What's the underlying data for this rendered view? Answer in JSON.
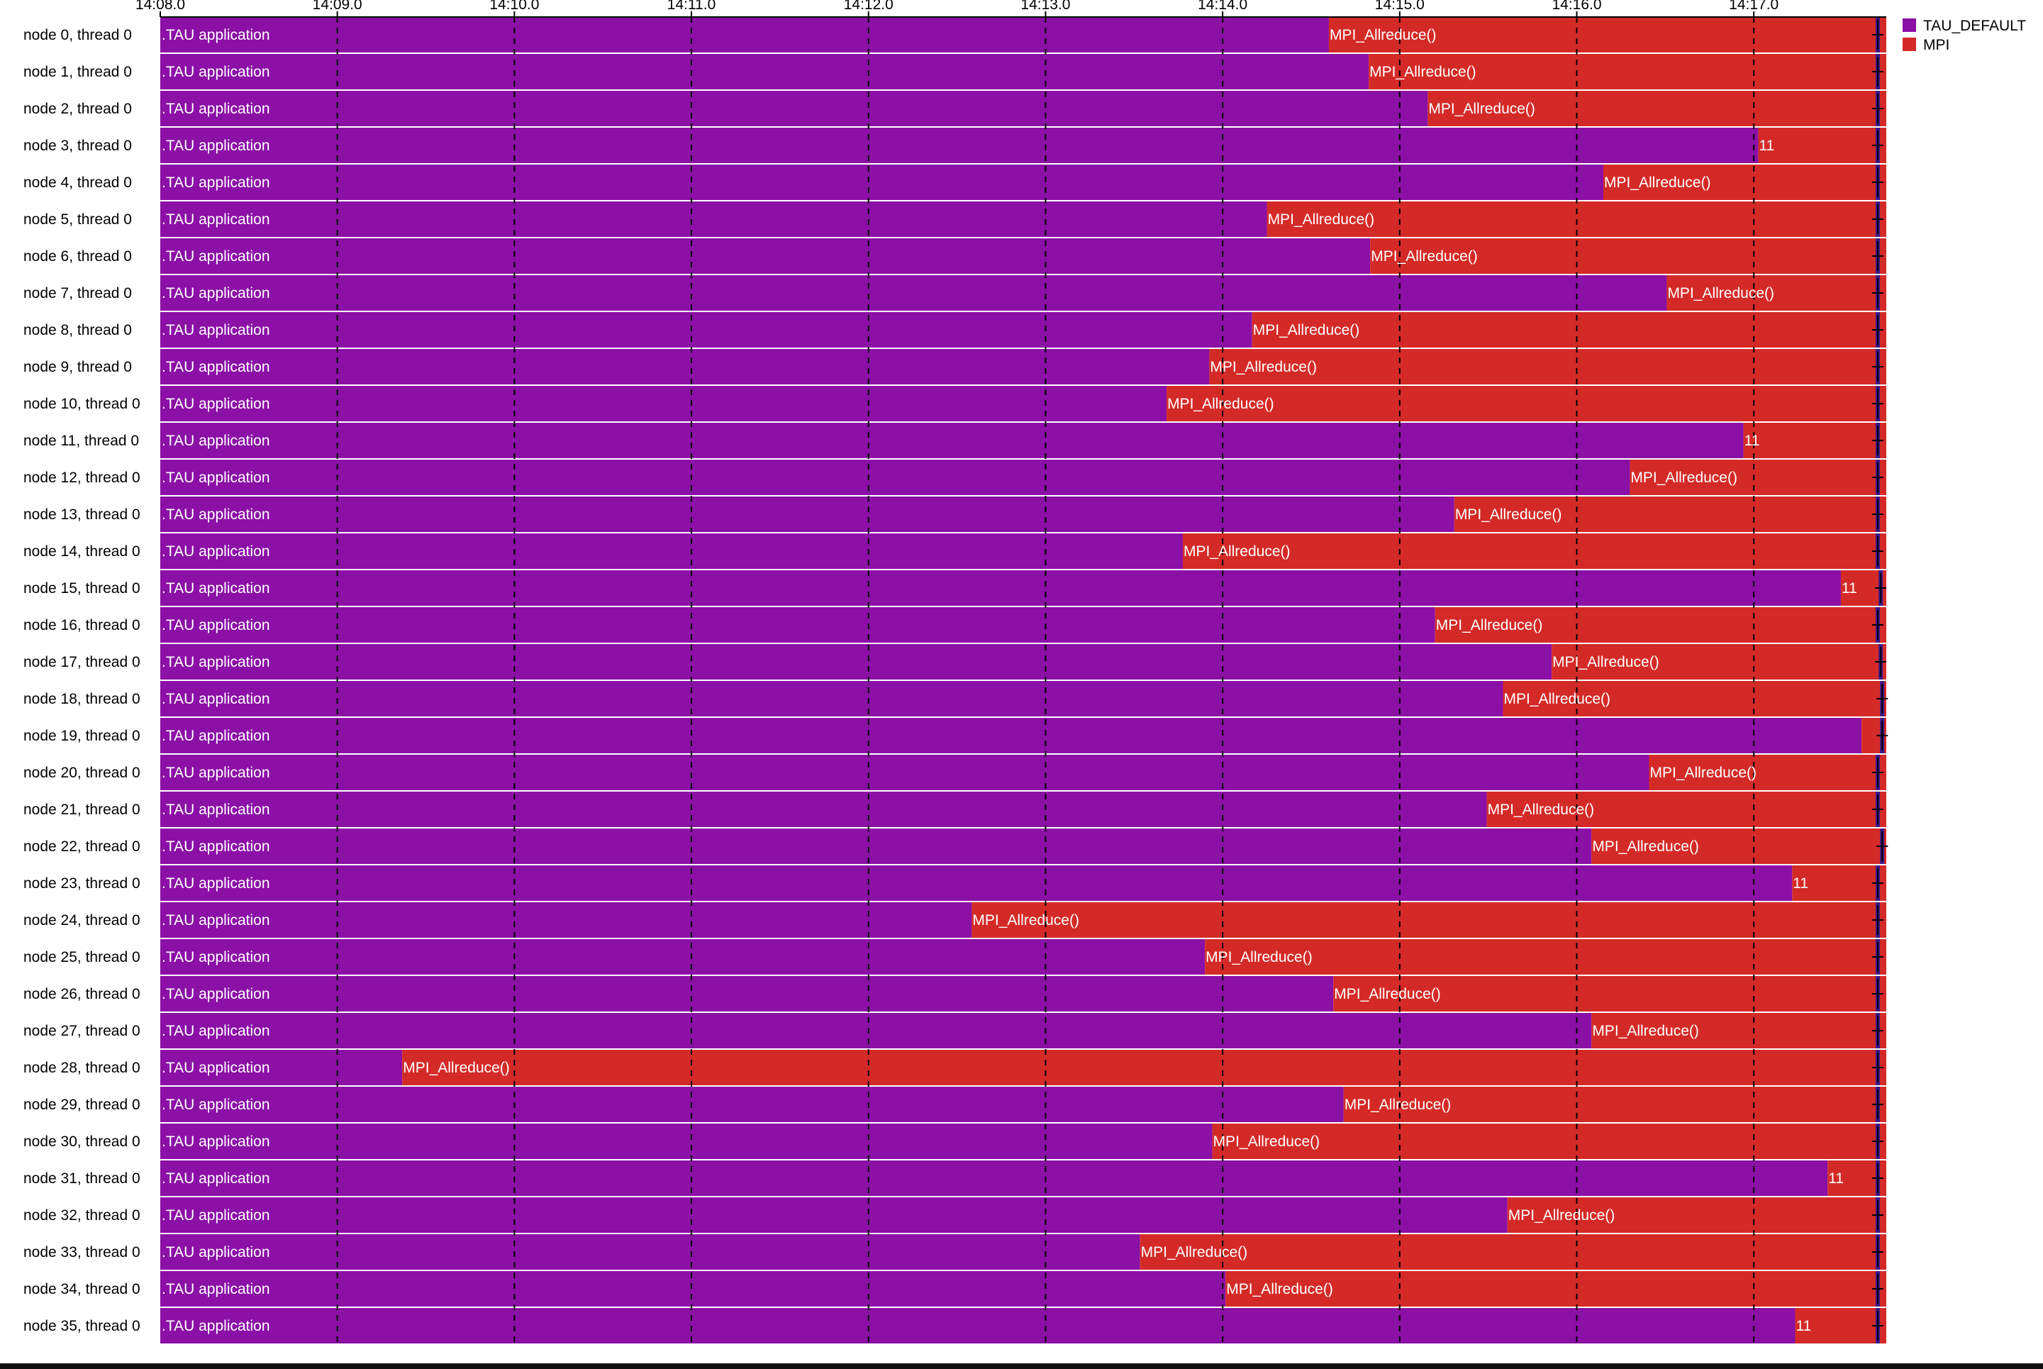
{
  "chart_data": {
    "type": "timeline",
    "x_ticks": [
      "14:08.0",
      "14:09.0",
      "14:10.0",
      "14:11.0",
      "14:12.0",
      "14:13.0",
      "14:14.0",
      "14:15.0",
      "14:16.0",
      "14:17.0"
    ],
    "xlim_seconds": [
      0,
      585
    ],
    "series_legend": [
      {
        "name": "TAU_DEFAULT",
        "color": "#8b10a6"
      },
      {
        "name": "MPI",
        "color": "#d42a27"
      }
    ],
    "rows": [
      {
        "label": "node 0, thread 0",
        "app_label": ".TAU application",
        "mpi_start_s": 396.0,
        "mpi_label": "MPI_Allreduce()",
        "end_marker_s": 582.0
      },
      {
        "label": "node 1, thread 0",
        "app_label": ".TAU application",
        "mpi_start_s": 409.5,
        "mpi_label": "MPI_Allreduce()",
        "end_marker_s": 582.0
      },
      {
        "label": "node 2, thread 0",
        "app_label": ".TAU application",
        "mpi_start_s": 429.5,
        "mpi_label": "MPI_Allreduce()",
        "end_marker_s": 582.0
      },
      {
        "label": "node 3, thread 0",
        "app_label": ".TAU application",
        "mpi_start_s": 541.5,
        "mpi_label": "11",
        "end_marker_s": 582.0
      },
      {
        "label": "node 4, thread 0",
        "app_label": ".TAU application",
        "mpi_start_s": 489.0,
        "mpi_label": "MPI_Allreduce()",
        "end_marker_s": 582.0
      },
      {
        "label": "node 5, thread 0",
        "app_label": ".TAU application",
        "mpi_start_s": 375.0,
        "mpi_label": "MPI_Allreduce()",
        "end_marker_s": 582.0
      },
      {
        "label": "node 6, thread 0",
        "app_label": ".TAU application",
        "mpi_start_s": 410.0,
        "mpi_label": "MPI_Allreduce()",
        "end_marker_s": 582.0
      },
      {
        "label": "node 7, thread 0",
        "app_label": ".TAU application",
        "mpi_start_s": 510.5,
        "mpi_label": "MPI_Allreduce()",
        "end_marker_s": 582.0
      },
      {
        "label": "node 8, thread 0",
        "app_label": ".TAU application",
        "mpi_start_s": 370.0,
        "mpi_label": "MPI_Allreduce()",
        "end_marker_s": 582.0
      },
      {
        "label": "node 9, thread 0",
        "app_label": ".TAU application",
        "mpi_start_s": 355.5,
        "mpi_label": "MPI_Allreduce()",
        "end_marker_s": 582.0
      },
      {
        "label": "node 10, thread 0",
        "app_label": ".TAU application",
        "mpi_start_s": 341.0,
        "mpi_label": "MPI_Allreduce()",
        "end_marker_s": 582.0
      },
      {
        "label": "node 11, thread 0",
        "app_label": ".TAU application",
        "mpi_start_s": 536.5,
        "mpi_label": "11",
        "end_marker_s": 582.0
      },
      {
        "label": "node 12, thread 0",
        "app_label": ".TAU application",
        "mpi_start_s": 498.0,
        "mpi_label": "MPI_Allreduce()",
        "end_marker_s": 582.0
      },
      {
        "label": "node 13, thread 0",
        "app_label": ".TAU application",
        "mpi_start_s": 438.5,
        "mpi_label": "MPI_Allreduce()",
        "end_marker_s": 582.0
      },
      {
        "label": "node 14, thread 0",
        "app_label": ".TAU application",
        "mpi_start_s": 346.5,
        "mpi_label": "MPI_Allreduce()",
        "end_marker_s": 582.0
      },
      {
        "label": "node 15, thread 0",
        "app_label": ".TAU application",
        "mpi_start_s": 569.5,
        "mpi_label": "11",
        "end_marker_s": 583.0
      },
      {
        "label": "node 16, thread 0",
        "app_label": ".TAU application",
        "mpi_start_s": 432.0,
        "mpi_label": "MPI_Allreduce()",
        "end_marker_s": 582.0
      },
      {
        "label": "node 17, thread 0",
        "app_label": ".TAU application",
        "mpi_start_s": 471.5,
        "mpi_label": "MPI_Allreduce()",
        "end_marker_s": 583.0
      },
      {
        "label": "node 18, thread 0",
        "app_label": ".TAU application",
        "mpi_start_s": 455.0,
        "mpi_label": "MPI_Allreduce()",
        "end_marker_s": 583.5
      },
      {
        "label": "node 19, thread 0",
        "app_label": ".TAU application",
        "mpi_start_s": 576.5,
        "mpi_label": "",
        "end_marker_s": 583.5
      },
      {
        "label": "node 20, thread 0",
        "app_label": ".TAU application",
        "mpi_start_s": 504.5,
        "mpi_label": "MPI_Allreduce()",
        "end_marker_s": 582.0
      },
      {
        "label": "node 21, thread 0",
        "app_label": ".TAU application",
        "mpi_start_s": 449.5,
        "mpi_label": "MPI_Allreduce()",
        "end_marker_s": 582.0
      },
      {
        "label": "node 22, thread 0",
        "app_label": ".TAU application",
        "mpi_start_s": 485.0,
        "mpi_label": "MPI_Allreduce()",
        "end_marker_s": 583.5
      },
      {
        "label": "node 23, thread 0",
        "app_label": ".TAU application",
        "mpi_start_s": 553.0,
        "mpi_label": "11",
        "end_marker_s": 582.0
      },
      {
        "label": "node 24, thread 0",
        "app_label": ".TAU application",
        "mpi_start_s": 275.0,
        "mpi_label": "MPI_Allreduce()",
        "end_marker_s": 582.0
      },
      {
        "label": "node 25, thread 0",
        "app_label": ".TAU application",
        "mpi_start_s": 354.0,
        "mpi_label": "MPI_Allreduce()",
        "end_marker_s": 582.0
      },
      {
        "label": "node 26, thread 0",
        "app_label": ".TAU application",
        "mpi_start_s": 397.5,
        "mpi_label": "MPI_Allreduce()",
        "end_marker_s": 582.0
      },
      {
        "label": "node 27, thread 0",
        "app_label": ".TAU application",
        "mpi_start_s": 485.0,
        "mpi_label": "MPI_Allreduce()",
        "end_marker_s": 582.0
      },
      {
        "label": "node 28, thread 0",
        "app_label": ".TAU application",
        "mpi_start_s": 82.0,
        "mpi_label": "MPI_Allreduce()",
        "end_marker_s": 582.0
      },
      {
        "label": "node 29, thread 0",
        "app_label": ".TAU application",
        "mpi_start_s": 401.0,
        "mpi_label": "MPI_Allreduce()",
        "end_marker_s": 582.0
      },
      {
        "label": "node 30, thread 0",
        "app_label": ".TAU application",
        "mpi_start_s": 356.5,
        "mpi_label": "MPI_Allreduce()",
        "end_marker_s": 582.0
      },
      {
        "label": "node 31, thread 0",
        "app_label": ".TAU application",
        "mpi_start_s": 565.0,
        "mpi_label": "11",
        "end_marker_s": 582.0
      },
      {
        "label": "node 32, thread 0",
        "app_label": ".TAU application",
        "mpi_start_s": 456.5,
        "mpi_label": "MPI_Allreduce()",
        "end_marker_s": 582.0
      },
      {
        "label": "node 33, thread 0",
        "app_label": ".TAU application",
        "mpi_start_s": 332.0,
        "mpi_label": "MPI_Allreduce()",
        "end_marker_s": 582.0
      },
      {
        "label": "node 34, thread 0",
        "app_label": ".TAU application",
        "mpi_start_s": 361.0,
        "mpi_label": "MPI_Allreduce()",
        "end_marker_s": 582.0
      },
      {
        "label": "node 35, thread 0",
        "app_label": ".TAU application",
        "mpi_start_s": 554.0,
        "mpi_label": "11",
        "end_marker_s": 582.0
      }
    ]
  }
}
